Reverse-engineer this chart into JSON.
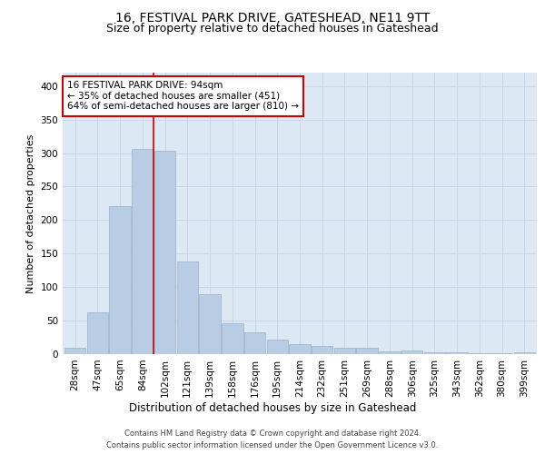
{
  "title1": "16, FESTIVAL PARK DRIVE, GATESHEAD, NE11 9TT",
  "title2": "Size of property relative to detached houses in Gateshead",
  "xlabel": "Distribution of detached houses by size in Gateshead",
  "ylabel": "Number of detached properties",
  "categories": [
    "28sqm",
    "47sqm",
    "65sqm",
    "84sqm",
    "102sqm",
    "121sqm",
    "139sqm",
    "158sqm",
    "176sqm",
    "195sqm",
    "214sqm",
    "232sqm",
    "251sqm",
    "269sqm",
    "288sqm",
    "306sqm",
    "325sqm",
    "343sqm",
    "362sqm",
    "380sqm",
    "399sqm"
  ],
  "values": [
    10,
    63,
    221,
    306,
    303,
    138,
    89,
    46,
    32,
    22,
    15,
    12,
    10,
    10,
    4,
    5,
    3,
    3,
    2,
    2,
    3
  ],
  "bar_color": "#b8cce4",
  "bar_edge_color": "#9ab0c8",
  "grid_color": "#c8d8e8",
  "bg_color": "#dce8f4",
  "vline_x": 3.5,
  "annotation_title": "16 FESTIVAL PARK DRIVE: 94sqm",
  "annotation_line1": "← 35% of detached houses are smaller (451)",
  "annotation_line2": "64% of semi-detached houses are larger (810) →",
  "annotation_box_color": "#ffffff",
  "annotation_box_edge": "#cc0000",
  "vline_color": "#cc0000",
  "footer1": "Contains HM Land Registry data © Crown copyright and database right 2024.",
  "footer2": "Contains public sector information licensed under the Open Government Licence v3.0.",
  "ylim": [
    0,
    420
  ],
  "title1_fontsize": 10,
  "title2_fontsize": 9,
  "xlabel_fontsize": 8.5,
  "ylabel_fontsize": 8,
  "tick_fontsize": 7.5,
  "annotation_fontsize": 7.5,
  "footer_fontsize": 6
}
